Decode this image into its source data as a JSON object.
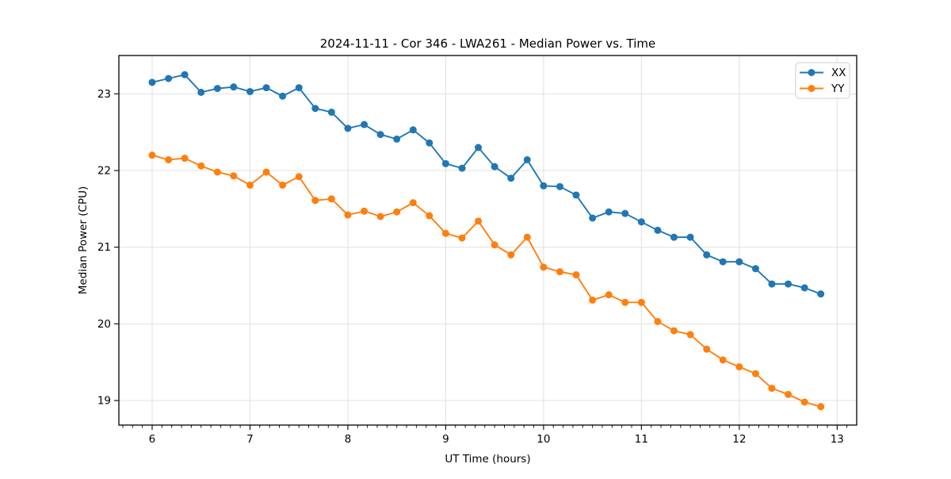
{
  "figure": {
    "title": "2024-11-11 - Cor 346 - LWA261 - Median Power vs. Time",
    "xlabel": "UT Time (hours)",
    "ylabel": "Median Power (CPU)"
  },
  "legend": {
    "position": "upper right",
    "items": [
      {
        "label": "XX",
        "color": "#1f77b4"
      },
      {
        "label": "YY",
        "color": "#ff7f0e"
      }
    ]
  },
  "colors": {
    "series_xx": "#1f77b4",
    "series_yy": "#ff7f0e",
    "grid": "#e0e0e0",
    "spine": "#000000",
    "background": "#ffffff",
    "legend_border": "#cccccc"
  },
  "chart_data": {
    "type": "line",
    "title": "2024-11-11 - Cor 346 - LWA261 - Median Power vs. Time",
    "xlabel": "UT Time (hours)",
    "ylabel": "Median Power (CPU)",
    "grid": true,
    "legend_position": "upper right",
    "marker": "circle",
    "xlim": [
      5.66,
      13.2
    ],
    "ylim": [
      18.68,
      23.5
    ],
    "xticks": [
      6,
      7,
      8,
      9,
      10,
      11,
      12,
      13
    ],
    "yticks": [
      19,
      20,
      21,
      22,
      23
    ],
    "minor_xtick_step": 0.1,
    "x": [
      6.0,
      6.167,
      6.333,
      6.5,
      6.667,
      6.833,
      7.0,
      7.167,
      7.333,
      7.5,
      7.667,
      7.833,
      8.0,
      8.167,
      8.333,
      8.5,
      8.667,
      8.833,
      9.0,
      9.167,
      9.333,
      9.5,
      9.667,
      9.833,
      10.0,
      10.167,
      10.333,
      10.5,
      10.667,
      10.833,
      11.0,
      11.167,
      11.333,
      11.5,
      11.667,
      11.833,
      12.0,
      12.167,
      12.333,
      12.5,
      12.667,
      12.833
    ],
    "series": [
      {
        "name": "XX",
        "color": "#1f77b4",
        "values": [
          23.15,
          23.2,
          23.25,
          23.02,
          23.07,
          23.09,
          23.03,
          23.08,
          22.97,
          23.08,
          22.81,
          22.76,
          22.55,
          22.6,
          22.47,
          22.41,
          22.53,
          22.36,
          22.09,
          22.03,
          22.3,
          22.05,
          21.9,
          22.14,
          21.8,
          21.79,
          21.68,
          21.38,
          21.46,
          21.44,
          21.33,
          21.22,
          21.13,
          21.13,
          20.9,
          20.81,
          20.81,
          20.72,
          20.52,
          20.52,
          20.47,
          20.39
        ]
      },
      {
        "name": "YY",
        "color": "#ff7f0e",
        "values": [
          22.2,
          22.14,
          22.16,
          22.06,
          21.98,
          21.93,
          21.81,
          21.98,
          21.81,
          21.92,
          21.61,
          21.63,
          21.42,
          21.47,
          21.4,
          21.46,
          21.58,
          21.41,
          21.18,
          21.12,
          21.34,
          21.03,
          20.9,
          21.13,
          20.74,
          20.68,
          20.64,
          20.31,
          20.38,
          20.28,
          20.28,
          20.03,
          19.91,
          19.86,
          19.67,
          19.53,
          19.44,
          19.35,
          19.16,
          19.08,
          18.98,
          18.92
        ]
      }
    ]
  }
}
